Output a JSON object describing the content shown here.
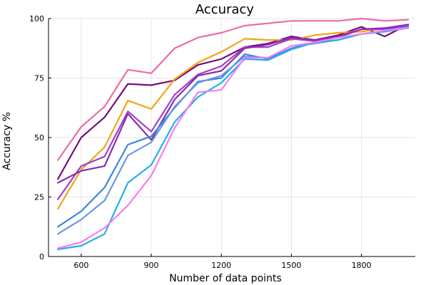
{
  "chart_data": {
    "type": "line",
    "title": "Accuracy",
    "xlabel": "Number of data points",
    "ylabel": "Accuracy %",
    "xlim": [
      460,
      2030
    ],
    "ylim": [
      0,
      100
    ],
    "xticks": [
      600,
      900,
      1200,
      1500,
      1800
    ],
    "yticks": [
      0,
      25,
      50,
      75,
      100
    ],
    "grid": true,
    "x": [
      500,
      600,
      700,
      800,
      900,
      1000,
      1100,
      1200,
      1300,
      1400,
      1500,
      1600,
      1700,
      1800,
      1900,
      2000
    ],
    "series": [
      {
        "color": "#ee6aa7",
        "values": [
          40.5,
          54.5,
          63,
          78.5,
          77,
          87.5,
          92,
          94,
          97,
          98,
          99,
          99,
          99,
          100,
          99,
          99.5
        ]
      },
      {
        "color": "#7a0a78",
        "values": [
          32.5,
          50,
          58.5,
          72.5,
          72,
          74,
          80.5,
          83,
          88,
          89.5,
          92.5,
          91,
          93,
          96.5,
          92.5,
          97.5
        ]
      },
      {
        "color": "#f2a41a",
        "values": [
          20,
          36.5,
          46,
          65.5,
          62,
          74.5,
          81.5,
          86,
          91.5,
          91,
          91,
          93,
          94,
          94.5,
          96,
          97
        ]
      },
      {
        "color": "#a040c8",
        "values": [
          24,
          38,
          42,
          61,
          52.5,
          68,
          76.5,
          80,
          88,
          88,
          91.5,
          90.5,
          92,
          95.5,
          95.5,
          97
        ]
      },
      {
        "color": "#8a2ab4",
        "values": [
          31,
          36,
          38,
          60,
          49,
          66,
          76,
          78,
          87.5,
          89,
          92,
          91,
          92.5,
          95.5,
          96,
          97.5
        ]
      },
      {
        "color": "#3a86de",
        "values": [
          12.5,
          19,
          29,
          47,
          50.5,
          62.5,
          73.5,
          75,
          85,
          83,
          87.5,
          90,
          91,
          93.5,
          95,
          96
        ]
      },
      {
        "color": "#6a96e6",
        "values": [
          9.5,
          15.5,
          23.5,
          42.5,
          48,
          63,
          73,
          76,
          84,
          83.5,
          88.5,
          89.5,
          91,
          93.5,
          94.5,
          96
        ]
      },
      {
        "color": "#22b0ea",
        "values": [
          3,
          4.5,
          9.5,
          31,
          38.5,
          56.5,
          67,
          73,
          83,
          82.5,
          87,
          90,
          91,
          93.5,
          94.5,
          96.5
        ]
      },
      {
        "color": "#f47ef2",
        "values": [
          3.5,
          6,
          12,
          21.5,
          34,
          54,
          69,
          70,
          83.5,
          83.5,
          88.5,
          90,
          92,
          93.5,
          95,
          96
        ]
      }
    ]
  }
}
